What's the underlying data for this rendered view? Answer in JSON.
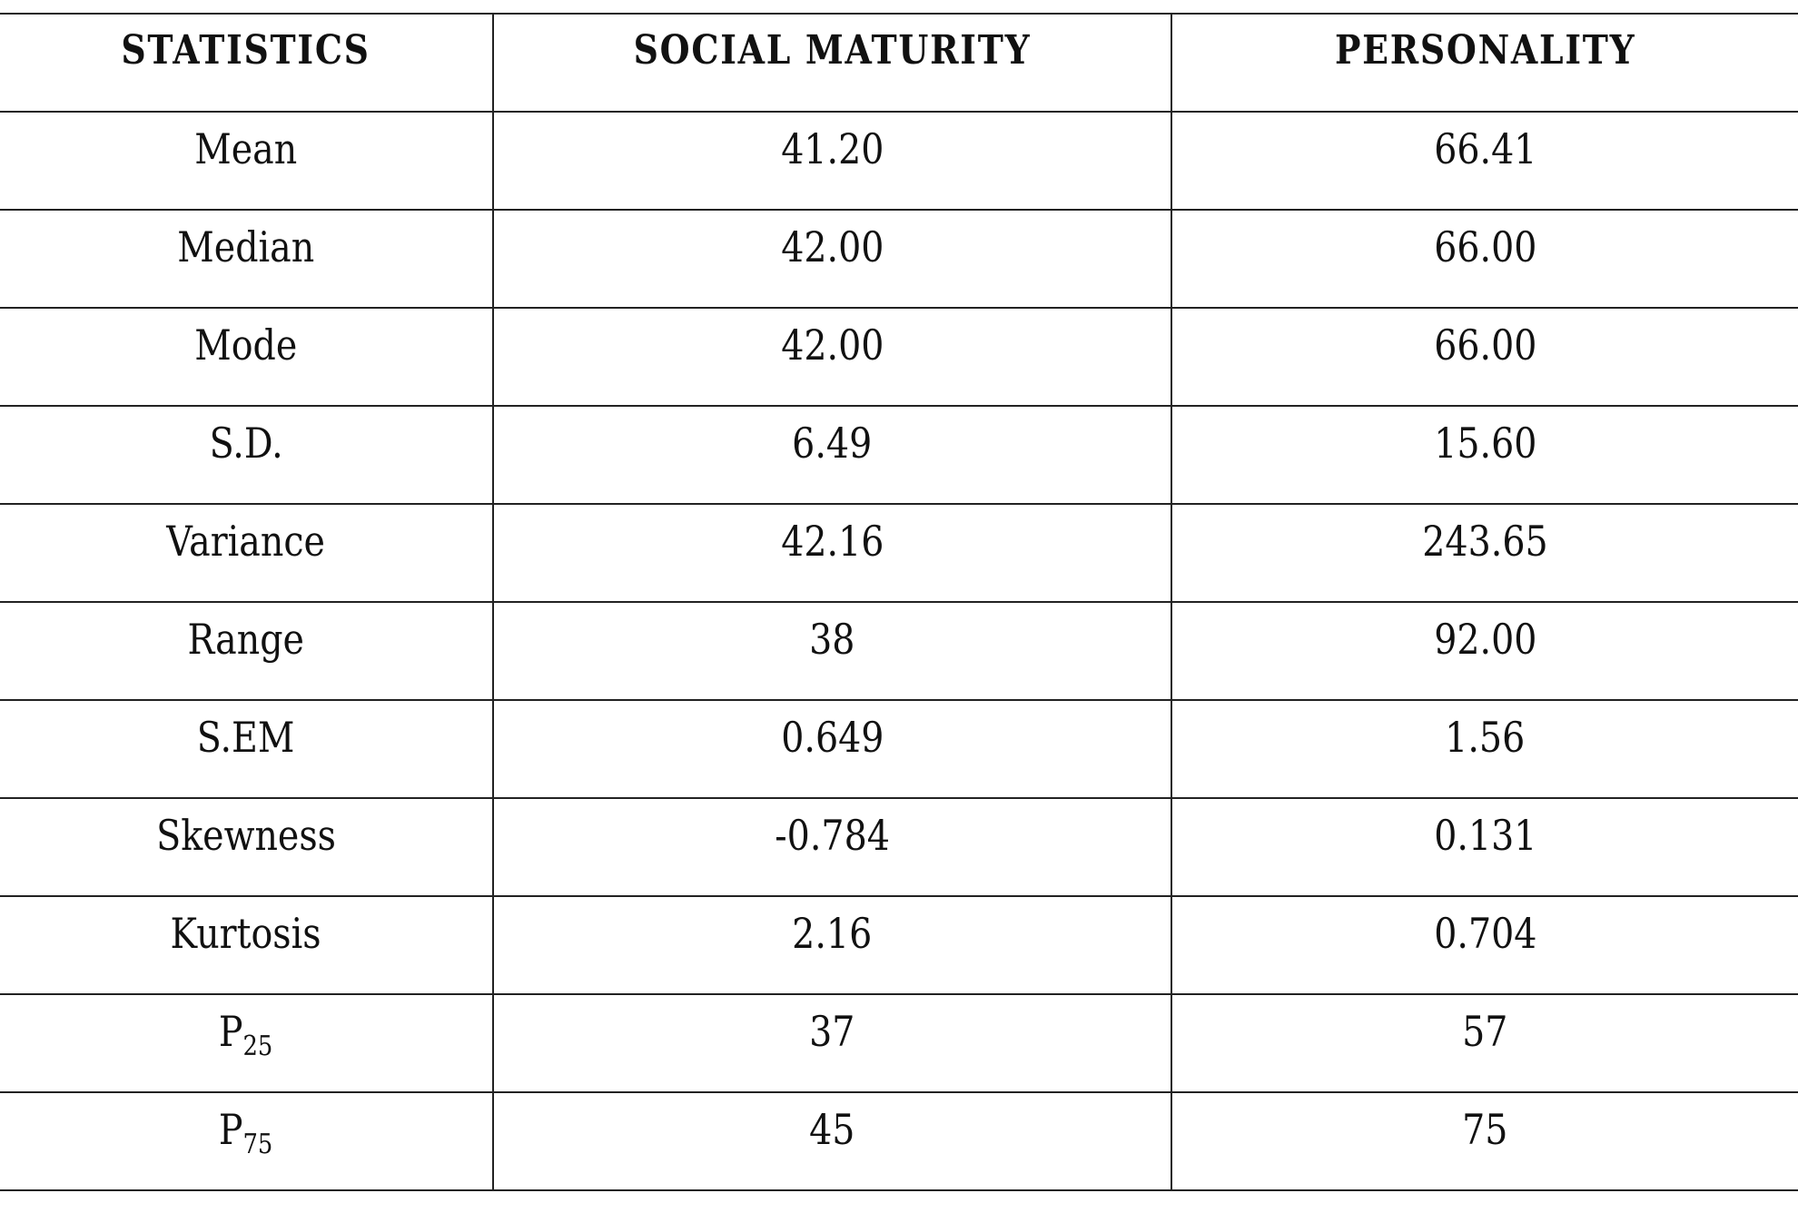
{
  "table": {
    "headers": [
      "STATISTICS",
      "SOCIAL MATURITY",
      "PERSONALITY"
    ],
    "rows": [
      {
        "stat": "Mean",
        "sub": "",
        "social": "41.20",
        "personality": "66.41"
      },
      {
        "stat": "Median",
        "sub": "",
        "social": "42.00",
        "personality": "66.00"
      },
      {
        "stat": "Mode",
        "sub": "",
        "social": "42.00",
        "personality": "66.00"
      },
      {
        "stat": "S.D.",
        "sub": "",
        "social": "6.49",
        "personality": "15.60"
      },
      {
        "stat": "Variance",
        "sub": "",
        "social": "42.16",
        "personality": "243.65"
      },
      {
        "stat": "Range",
        "sub": "",
        "social": "38",
        "personality": "92.00"
      },
      {
        "stat": "S.EM",
        "sub": "",
        "social": "0.649",
        "personality": "1.56"
      },
      {
        "stat": "Skewness",
        "sub": "",
        "social": "-0.784",
        "personality": "0.131"
      },
      {
        "stat": "Kurtosis",
        "sub": "",
        "social": "2.16",
        "personality": "0.704"
      },
      {
        "stat": "P",
        "sub": "25",
        "social": "37",
        "personality": "57"
      },
      {
        "stat": "P",
        "sub": "75",
        "social": "45",
        "personality": "75"
      }
    ]
  }
}
